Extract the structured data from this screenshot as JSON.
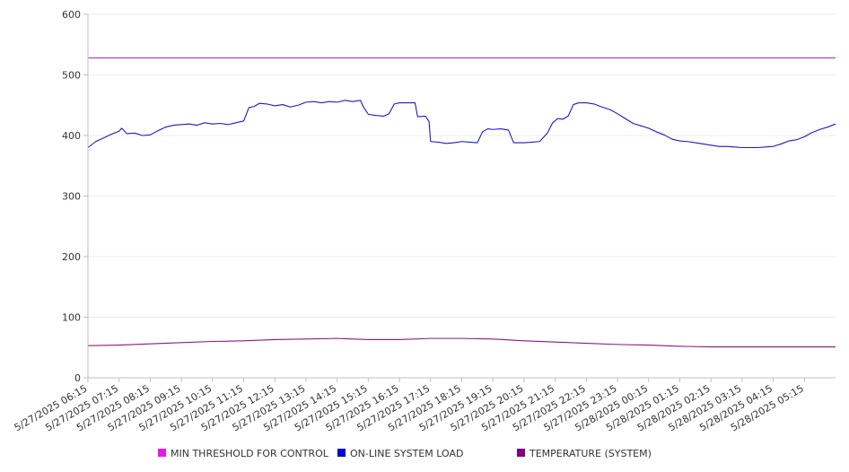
{
  "chart_data": {
    "type": "line",
    "title": "",
    "xlabel": "",
    "ylabel": "",
    "ylim": [
      0,
      600
    ],
    "yticks": [
      0,
      100,
      200,
      300,
      400,
      500,
      600
    ],
    "grid": true,
    "legend_position": "bottom",
    "x_start": "5/27/2025 06:15",
    "x_end": "5/28/2025 06:15",
    "xtick_labels": [
      "5/27/2025 06:15",
      "5/27/2025 07:15",
      "5/27/2025 08:15",
      "5/27/2025 09:15",
      "5/27/2025 10:15",
      "5/27/2025 11:15",
      "5/27/2025 12:15",
      "5/27/2025 13:15",
      "5/27/2025 14:15",
      "5/27/2025 15:15",
      "5/27/2025 16:15",
      "5/27/2025 17:15",
      "5/27/2025 18:15",
      "5/27/2025 19:15",
      "5/27/2025 20:15",
      "5/27/2025 21:15",
      "5/27/2025 22:15",
      "5/27/2025 23:15",
      "5/28/2025 00:15",
      "5/28/2025 01:15",
      "5/28/2025 02:15",
      "5/28/2025 03:15",
      "5/28/2025 04:15",
      "5/28/2025 05:15"
    ],
    "series": [
      {
        "name": "MIN THRESHOLD FOR CONTROL",
        "color": "#e619e6",
        "line_color": "#b03cc8",
        "points": [
          [
            "5/27/2025 06:15",
            528
          ],
          [
            "5/28/2025 06:15",
            528
          ]
        ]
      },
      {
        "name": "ON-LINE SYSTEM LOAD",
        "color": "#0000dd",
        "line_color": "#1a1acc",
        "points": [
          [
            "5/27/2025 06:15",
            380
          ],
          [
            "5/27/2025 06:30",
            390
          ],
          [
            "5/27/2025 06:45",
            396
          ],
          [
            "5/27/2025 07:00",
            402
          ],
          [
            "5/27/2025 07:15",
            407
          ],
          [
            "5/27/2025 07:20",
            412
          ],
          [
            "5/27/2025 07:30",
            403
          ],
          [
            "5/27/2025 07:45",
            404
          ],
          [
            "5/27/2025 08:00",
            400
          ],
          [
            "5/27/2025 08:15",
            401
          ],
          [
            "5/27/2025 08:30",
            408
          ],
          [
            "5/27/2025 08:45",
            414
          ],
          [
            "5/27/2025 09:00",
            417
          ],
          [
            "5/27/2025 09:15",
            418
          ],
          [
            "5/27/2025 09:30",
            419
          ],
          [
            "5/27/2025 09:45",
            417
          ],
          [
            "5/27/2025 10:00",
            421
          ],
          [
            "5/27/2025 10:15",
            419
          ],
          [
            "5/27/2025 10:30",
            420
          ],
          [
            "5/27/2025 10:45",
            418
          ],
          [
            "5/27/2025 11:00",
            421
          ],
          [
            "5/27/2025 11:15",
            424
          ],
          [
            "5/27/2025 11:25",
            446
          ],
          [
            "5/27/2025 11:35",
            448
          ],
          [
            "5/27/2025 11:45",
            453
          ],
          [
            "5/27/2025 12:00",
            452
          ],
          [
            "5/27/2025 12:15",
            449
          ],
          [
            "5/27/2025 12:30",
            451
          ],
          [
            "5/27/2025 12:45",
            447
          ],
          [
            "5/27/2025 13:00",
            450
          ],
          [
            "5/27/2025 13:15",
            455
          ],
          [
            "5/27/2025 13:30",
            456
          ],
          [
            "5/27/2025 13:45",
            454
          ],
          [
            "5/27/2025 14:00",
            456
          ],
          [
            "5/27/2025 14:15",
            455
          ],
          [
            "5/27/2025 14:30",
            458
          ],
          [
            "5/27/2025 14:45",
            456
          ],
          [
            "5/27/2025 15:00",
            458
          ],
          [
            "5/27/2025 15:05",
            448
          ],
          [
            "5/27/2025 15:15",
            435
          ],
          [
            "5/27/2025 15:30",
            433
          ],
          [
            "5/27/2025 15:45",
            432
          ],
          [
            "5/27/2025 15:55",
            436
          ],
          [
            "5/27/2025 16:05",
            452
          ],
          [
            "5/27/2025 16:15",
            454
          ],
          [
            "5/27/2025 16:45",
            454
          ],
          [
            "5/27/2025 16:50",
            431
          ],
          [
            "5/27/2025 17:05",
            432
          ],
          [
            "5/27/2025 17:12",
            423
          ],
          [
            "5/27/2025 17:15",
            390
          ],
          [
            "5/27/2025 17:30",
            389
          ],
          [
            "5/27/2025 17:45",
            387
          ],
          [
            "5/27/2025 18:00",
            388
          ],
          [
            "5/27/2025 18:15",
            390
          ],
          [
            "5/27/2025 18:30",
            389
          ],
          [
            "5/27/2025 18:45",
            388
          ],
          [
            "5/27/2025 18:55",
            406
          ],
          [
            "5/27/2025 19:05",
            411
          ],
          [
            "5/27/2025 19:15",
            410
          ],
          [
            "5/27/2025 19:30",
            411
          ],
          [
            "5/27/2025 19:45",
            409
          ],
          [
            "5/27/2025 19:55",
            388
          ],
          [
            "5/27/2025 20:15",
            388
          ],
          [
            "5/27/2025 20:30",
            389
          ],
          [
            "5/27/2025 20:45",
            390
          ],
          [
            "5/27/2025 21:00",
            404
          ],
          [
            "5/27/2025 21:10",
            421
          ],
          [
            "5/27/2025 21:20",
            428
          ],
          [
            "5/27/2025 21:30",
            427
          ],
          [
            "5/27/2025 21:40",
            432
          ],
          [
            "5/27/2025 21:50",
            451
          ],
          [
            "5/27/2025 22:00",
            454
          ],
          [
            "5/27/2025 22:15",
            454
          ],
          [
            "5/27/2025 22:30",
            452
          ],
          [
            "5/27/2025 22:45",
            447
          ],
          [
            "5/27/2025 23:00",
            443
          ],
          [
            "5/27/2025 23:15",
            436
          ],
          [
            "5/27/2025 23:30",
            428
          ],
          [
            "5/27/2025 23:45",
            420
          ],
          [
            "5/28/2025 00:00",
            416
          ],
          [
            "5/28/2025 00:15",
            412
          ],
          [
            "5/28/2025 00:30",
            406
          ],
          [
            "5/28/2025 00:45",
            401
          ],
          [
            "5/28/2025 01:00",
            394
          ],
          [
            "5/28/2025 01:15",
            391
          ],
          [
            "5/28/2025 01:30",
            390
          ],
          [
            "5/28/2025 01:45",
            388
          ],
          [
            "5/28/2025 02:00",
            386
          ],
          [
            "5/28/2025 02:15",
            384
          ],
          [
            "5/28/2025 02:30",
            382
          ],
          [
            "5/28/2025 02:45",
            382
          ],
          [
            "5/28/2025 03:00",
            381
          ],
          [
            "5/28/2025 03:15",
            380
          ],
          [
            "5/28/2025 03:30",
            380
          ],
          [
            "5/28/2025 03:45",
            380
          ],
          [
            "5/28/2025 04:00",
            381
          ],
          [
            "5/28/2025 04:15",
            382
          ],
          [
            "5/28/2025 04:30",
            386
          ],
          [
            "5/28/2025 04:45",
            391
          ],
          [
            "5/28/2025 05:00",
            393
          ],
          [
            "5/28/2025 05:15",
            398
          ],
          [
            "5/28/2025 05:30",
            405
          ],
          [
            "5/28/2025 05:45",
            410
          ],
          [
            "5/28/2025 06:00",
            414
          ],
          [
            "5/28/2025 06:15",
            419
          ]
        ]
      },
      {
        "name": "TEMPERATURE (SYSTEM)",
        "color": "#800080",
        "line_color": "#8b1a7a",
        "points": [
          [
            "5/27/2025 06:15",
            53
          ],
          [
            "5/27/2025 07:15",
            54
          ],
          [
            "5/27/2025 08:15",
            56
          ],
          [
            "5/27/2025 09:15",
            58
          ],
          [
            "5/27/2025 10:15",
            60
          ],
          [
            "5/27/2025 11:15",
            61
          ],
          [
            "5/27/2025 12:15",
            63
          ],
          [
            "5/27/2025 13:15",
            64
          ],
          [
            "5/27/2025 14:15",
            65
          ],
          [
            "5/27/2025 15:15",
            63
          ],
          [
            "5/27/2025 16:15",
            63
          ],
          [
            "5/27/2025 17:15",
            65
          ],
          [
            "5/27/2025 18:15",
            65
          ],
          [
            "5/27/2025 19:15",
            64
          ],
          [
            "5/27/2025 20:15",
            61
          ],
          [
            "5/27/2025 21:15",
            59
          ],
          [
            "5/27/2025 22:15",
            57
          ],
          [
            "5/27/2025 23:15",
            55
          ],
          [
            "5/28/2025 00:15",
            54
          ],
          [
            "5/28/2025 01:15",
            52
          ],
          [
            "5/28/2025 02:15",
            51
          ],
          [
            "5/28/2025 03:15",
            51
          ],
          [
            "5/28/2025 04:15",
            51
          ],
          [
            "5/28/2025 05:15",
            51
          ],
          [
            "5/28/2025 06:15",
            51
          ]
        ]
      }
    ]
  }
}
